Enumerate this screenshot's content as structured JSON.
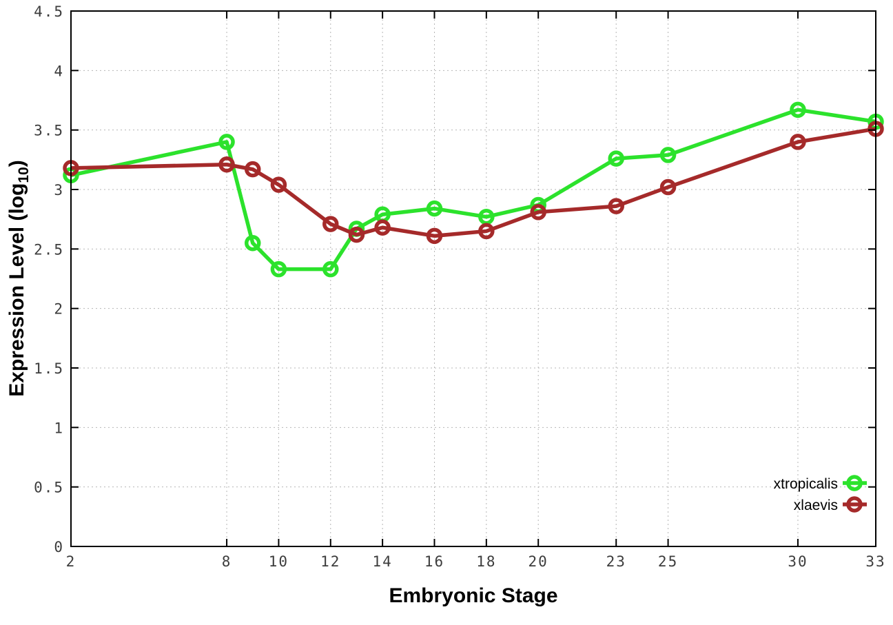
{
  "chart_data": {
    "type": "line",
    "title": "",
    "xlabel": "Embryonic Stage",
    "ylabel": "Expression Level (log10)",
    "ylabel_parts": {
      "main": "Expression Level (log",
      "sub": "10",
      "end": ")"
    },
    "xlim": [
      2,
      33
    ],
    "ylim": [
      0,
      4.5
    ],
    "xticks": [
      2,
      8,
      10,
      12,
      14,
      16,
      18,
      20,
      23,
      25,
      30,
      33
    ],
    "yticks": [
      0,
      0.5,
      1,
      1.5,
      2,
      2.5,
      3,
      3.5,
      4,
      4.5
    ],
    "ytick_labels": [
      "0",
      "0.5",
      "1",
      "1.5",
      "2",
      "2.5",
      "3",
      "3.5",
      "4",
      "4.5"
    ],
    "grid": true,
    "legend_position": "bottom-right",
    "x": [
      2,
      8,
      9,
      10,
      12,
      13,
      14,
      16,
      18,
      20,
      23,
      25,
      30,
      33
    ],
    "series": [
      {
        "name": "xtropicalis",
        "color": "#2ce22c",
        "values": [
          3.12,
          3.4,
          2.55,
          2.33,
          2.33,
          2.67,
          2.79,
          2.84,
          2.77,
          2.87,
          3.26,
          3.29,
          3.67,
          3.57
        ]
      },
      {
        "name": "xlaevis",
        "color": "#a52a2a",
        "values": [
          3.18,
          3.21,
          3.17,
          3.04,
          2.71,
          2.62,
          2.68,
          2.61,
          2.65,
          2.81,
          2.86,
          3.02,
          3.4,
          3.51
        ]
      }
    ],
    "colors": {
      "background": "#ffffff",
      "border": "#000000",
      "grid": "#b5b5b5",
      "tick_text": "#3c3c3c"
    }
  }
}
